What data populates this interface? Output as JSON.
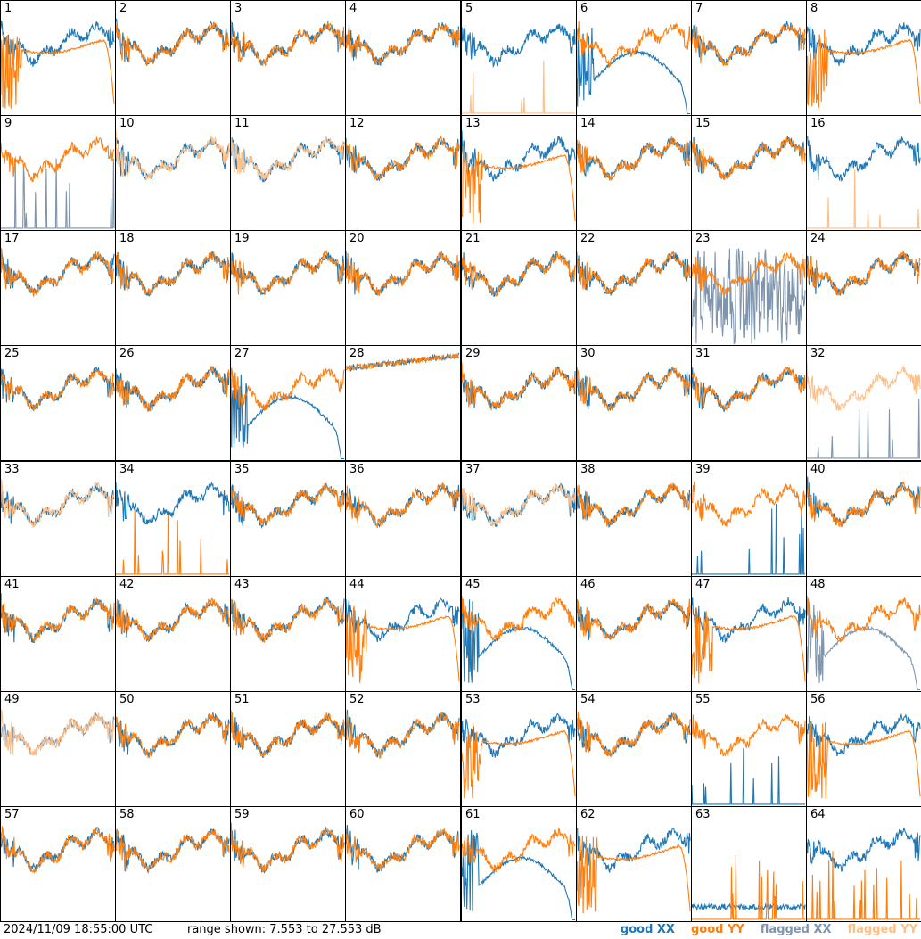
{
  "footer": {
    "timestamp": "2024/11/09 18:55:00 UTC",
    "range": "range shown: 7.553 to 27.553 dB"
  },
  "legend": {
    "good_xx": "good XX",
    "good_yy": "good YY",
    "flagged_xx": "flagged XX",
    "flagged_yy": "flagged YY"
  },
  "colors": {
    "good_xx": "#1f77b4",
    "good_yy": "#ff7f0e",
    "flagged_xx": "#7f95ae",
    "flagged_yy": "#ffbf86"
  },
  "chart_data": {
    "type": "line",
    "grid": "8x8",
    "ylim": [
      7.553,
      27.553
    ],
    "y_unit": "dB",
    "tiles": [
      {
        "id": "1",
        "xx": "good",
        "yy": "good",
        "xxShape": "n",
        "yyShape": "sag"
      },
      {
        "id": "2",
        "xx": "good",
        "yy": "good",
        "xxShape": "n",
        "yyShape": "n"
      },
      {
        "id": "3",
        "xx": "good",
        "yy": "good",
        "xxShape": "n",
        "yyShape": "n"
      },
      {
        "id": "4",
        "xx": "good",
        "yy": "good",
        "xxShape": "n",
        "yyShape": "n"
      },
      {
        "id": "5",
        "xx": "good",
        "yy": "flagged",
        "xxShape": "n",
        "yyShape": "spikes"
      },
      {
        "id": "6",
        "xx": "good",
        "yy": "good",
        "xxShape": "dip",
        "yyShape": "n"
      },
      {
        "id": "7",
        "xx": "good",
        "yy": "good",
        "xxShape": "n",
        "yyShape": "n"
      },
      {
        "id": "8",
        "xx": "good",
        "yy": "good",
        "xxShape": "n",
        "yyShape": "sag"
      },
      {
        "id": "9",
        "xx": "flagged",
        "yy": "good",
        "xxShape": "spikes",
        "yyShape": "n"
      },
      {
        "id": "10",
        "xx": "good",
        "yy": "flagged",
        "xxShape": "n",
        "yyShape": "n"
      },
      {
        "id": "11",
        "xx": "good",
        "yy": "flagged",
        "xxShape": "n",
        "yyShape": "n"
      },
      {
        "id": "12",
        "xx": "good",
        "yy": "good",
        "xxShape": "n",
        "yyShape": "n"
      },
      {
        "id": "13",
        "xx": "good",
        "yy": "good",
        "xxShape": "n",
        "yyShape": "sag"
      },
      {
        "id": "14",
        "xx": "good",
        "yy": "good",
        "xxShape": "n",
        "yyShape": "n"
      },
      {
        "id": "15",
        "xx": "good",
        "yy": "good",
        "xxShape": "n",
        "yyShape": "n"
      },
      {
        "id": "16",
        "xx": "good",
        "yy": "flagged",
        "xxShape": "n",
        "yyShape": "spikes"
      },
      {
        "id": "17",
        "xx": "good",
        "yy": "good",
        "xxShape": "n",
        "yyShape": "n"
      },
      {
        "id": "18",
        "xx": "good",
        "yy": "good",
        "xxShape": "n",
        "yyShape": "n"
      },
      {
        "id": "19",
        "xx": "good",
        "yy": "good",
        "xxShape": "n",
        "yyShape": "n"
      },
      {
        "id": "20",
        "xx": "good",
        "yy": "good",
        "xxShape": "n",
        "yyShape": "n"
      },
      {
        "id": "21",
        "xx": "good",
        "yy": "good",
        "xxShape": "n",
        "yyShape": "n"
      },
      {
        "id": "22",
        "xx": "good",
        "yy": "good",
        "xxShape": "n",
        "yyShape": "n"
      },
      {
        "id": "23",
        "xx": "flagged",
        "yy": "good",
        "xxShape": "noise",
        "yyShape": "n"
      },
      {
        "id": "24",
        "xx": "good",
        "yy": "good",
        "xxShape": "n",
        "yyShape": "n"
      },
      {
        "id": "25",
        "xx": "good",
        "yy": "good",
        "xxShape": "n",
        "yyShape": "n"
      },
      {
        "id": "26",
        "xx": "good",
        "yy": "good",
        "xxShape": "n",
        "yyShape": "n"
      },
      {
        "id": "27",
        "xx": "good",
        "yy": "good",
        "xxShape": "dip",
        "yyShape": "n"
      },
      {
        "id": "28",
        "xx": "good",
        "yy": "good",
        "xxShape": "flat",
        "yyShape": "flat"
      },
      {
        "id": "29",
        "xx": "good",
        "yy": "good",
        "xxShape": "n",
        "yyShape": "n"
      },
      {
        "id": "30",
        "xx": "good",
        "yy": "good",
        "xxShape": "n",
        "yyShape": "n"
      },
      {
        "id": "31",
        "xx": "good",
        "yy": "good",
        "xxShape": "n",
        "yyShape": "n"
      },
      {
        "id": "32",
        "xx": "flagged",
        "yy": "flagged",
        "xxShape": "spikes",
        "yyShape": "n"
      },
      {
        "id": "33",
        "xx": "good",
        "yy": "flagged",
        "xxShape": "n",
        "yyShape": "n"
      },
      {
        "id": "34",
        "xx": "good",
        "yy": "good",
        "xxShape": "n",
        "yyShape": "spikes"
      },
      {
        "id": "35",
        "xx": "good",
        "yy": "good",
        "xxShape": "n",
        "yyShape": "n"
      },
      {
        "id": "36",
        "xx": "good",
        "yy": "good",
        "xxShape": "n",
        "yyShape": "n"
      },
      {
        "id": "37",
        "xx": "good",
        "yy": "flagged",
        "xxShape": "n",
        "yyShape": "n"
      },
      {
        "id": "38",
        "xx": "good",
        "yy": "good",
        "xxShape": "n",
        "yyShape": "n"
      },
      {
        "id": "39",
        "xx": "good",
        "yy": "good",
        "xxShape": "spikes",
        "yyShape": "n"
      },
      {
        "id": "40",
        "xx": "good",
        "yy": "good",
        "xxShape": "n",
        "yyShape": "n"
      },
      {
        "id": "41",
        "xx": "good",
        "yy": "good",
        "xxShape": "n",
        "yyShape": "n"
      },
      {
        "id": "42",
        "xx": "good",
        "yy": "good",
        "xxShape": "n",
        "yyShape": "n"
      },
      {
        "id": "43",
        "xx": "good",
        "yy": "good",
        "xxShape": "n",
        "yyShape": "n"
      },
      {
        "id": "44",
        "xx": "good",
        "yy": "good",
        "xxShape": "n",
        "yyShape": "sag"
      },
      {
        "id": "45",
        "xx": "good",
        "yy": "good",
        "xxShape": "dip",
        "yyShape": "n"
      },
      {
        "id": "46",
        "xx": "good",
        "yy": "good",
        "xxShape": "n",
        "yyShape": "n"
      },
      {
        "id": "47",
        "xx": "good",
        "yy": "good",
        "xxShape": "n",
        "yyShape": "sag"
      },
      {
        "id": "48",
        "xx": "flagged",
        "yy": "good",
        "xxShape": "dip",
        "yyShape": "n"
      },
      {
        "id": "49",
        "xx": "flagged",
        "yy": "flagged",
        "xxShape": "n",
        "yyShape": "n"
      },
      {
        "id": "50",
        "xx": "good",
        "yy": "good",
        "xxShape": "n",
        "yyShape": "n"
      },
      {
        "id": "51",
        "xx": "good",
        "yy": "good",
        "xxShape": "n",
        "yyShape": "n"
      },
      {
        "id": "52",
        "xx": "good",
        "yy": "good",
        "xxShape": "n",
        "yyShape": "n"
      },
      {
        "id": "53",
        "xx": "good",
        "yy": "good",
        "xxShape": "n",
        "yyShape": "sag"
      },
      {
        "id": "54",
        "xx": "good",
        "yy": "good",
        "xxShape": "n",
        "yyShape": "n"
      },
      {
        "id": "55",
        "xx": "good",
        "yy": "good",
        "xxShape": "spikes",
        "yyShape": "n"
      },
      {
        "id": "56",
        "xx": "good",
        "yy": "good",
        "xxShape": "n",
        "yyShape": "sag"
      },
      {
        "id": "57",
        "xx": "good",
        "yy": "good",
        "xxShape": "n",
        "yyShape": "n"
      },
      {
        "id": "58",
        "xx": "good",
        "yy": "good",
        "xxShape": "n",
        "yyShape": "n"
      },
      {
        "id": "59",
        "xx": "good",
        "yy": "good",
        "xxShape": "n",
        "yyShape": "n"
      },
      {
        "id": "60",
        "xx": "good",
        "yy": "good",
        "xxShape": "n",
        "yyShape": "n"
      },
      {
        "id": "61",
        "xx": "good",
        "yy": "good",
        "xxShape": "dip",
        "yyShape": "n"
      },
      {
        "id": "62",
        "xx": "good",
        "yy": "good",
        "xxShape": "n",
        "yyShape": "sag"
      },
      {
        "id": "63",
        "xx": "good",
        "yy": "good",
        "xxShape": "low",
        "yyShape": "spikes"
      },
      {
        "id": "64",
        "xx": "good",
        "yy": "good",
        "xxShape": "n",
        "yyShape": "spikes"
      }
    ]
  }
}
